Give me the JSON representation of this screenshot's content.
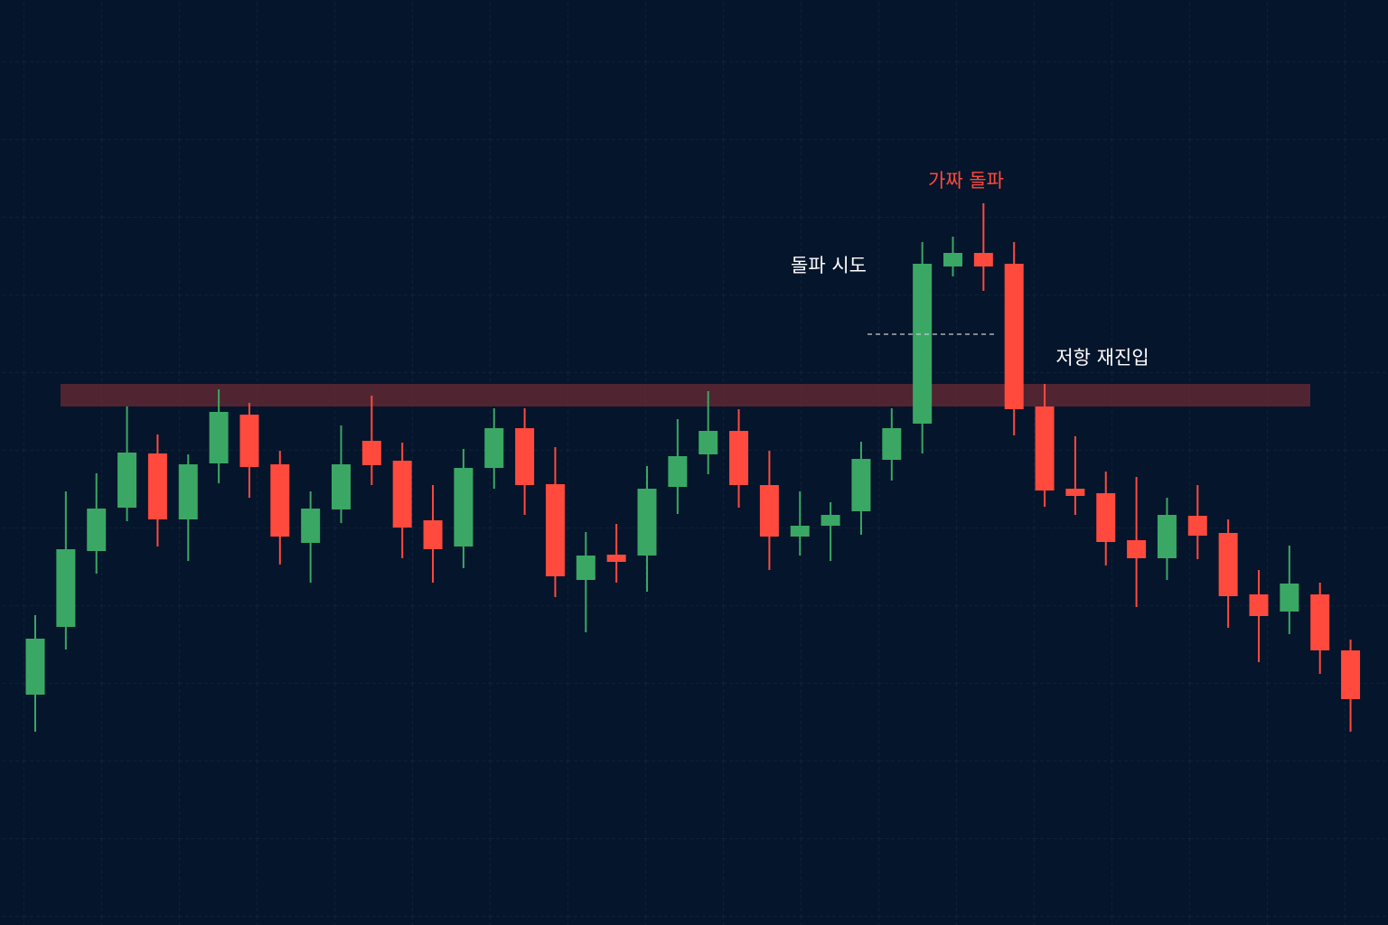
{
  "chart_data": {
    "type": "candlestick",
    "ylim": [
      0,
      1024
    ],
    "open": [
      255,
      330,
      414,
      462,
      522,
      449,
      511,
      565,
      510,
      423,
      460,
      536,
      514,
      448,
      419,
      506,
      550,
      488,
      382,
      410,
      409,
      485,
      521,
      547,
      487,
      430,
      442,
      458,
      515,
      555,
      729,
      744,
      732,
      574,
      483,
      478,
      426,
      406,
      453,
      434,
      366,
      347,
      366,
      304
    ],
    "high": [
      343,
      480,
      500,
      574,
      543,
      521,
      593,
      578,
      525,
      480,
      553,
      586,
      534,
      487,
      527,
      572,
      572,
      529,
      435,
      444,
      508,
      560,
      591,
      571,
      525,
      480,
      468,
      535,
      572,
      756,
      762,
      799,
      756,
      599,
      541,
      502,
      496,
      473,
      487,
      449,
      393,
      420,
      379,
      316
    ],
    "low": [
      214,
      305,
      389,
      447,
      419,
      403,
      489,
      473,
      399,
      379,
      445,
      487,
      406,
      379,
      395,
      483,
      454,
      363,
      324,
      379,
      369,
      455,
      499,
      462,
      393,
      409,
      403,
      432,
      492,
      522,
      718,
      702,
      542,
      463,
      454,
      398,
      352,
      382,
      405,
      329,
      291,
      322,
      278,
      214
    ],
    "close": [
      317,
      416,
      461,
      523,
      449,
      510,
      568,
      507,
      430,
      461,
      510,
      509,
      440,
      416,
      506,
      550,
      487,
      386,
      409,
      402,
      483,
      519,
      547,
      487,
      430,
      442,
      454,
      516,
      550,
      732,
      744,
      729,
      571,
      481,
      475,
      424,
      406,
      454,
      431,
      364,
      342,
      378,
      304,
      250
    ],
    "up_color": "#3aa864",
    "down_color": "#ff4a3d",
    "resistance_zone": [
      574,
      599
    ],
    "zone_color": "#6b2a35",
    "breakout_level": 654,
    "annotations": [
      {
        "text": "가짜 돌파",
        "color": "#ff4a3d"
      },
      {
        "text": "돌파 시도",
        "color": "#ffffff"
      },
      {
        "text": "저항 재진입",
        "color": "#ffffff"
      }
    ]
  }
}
